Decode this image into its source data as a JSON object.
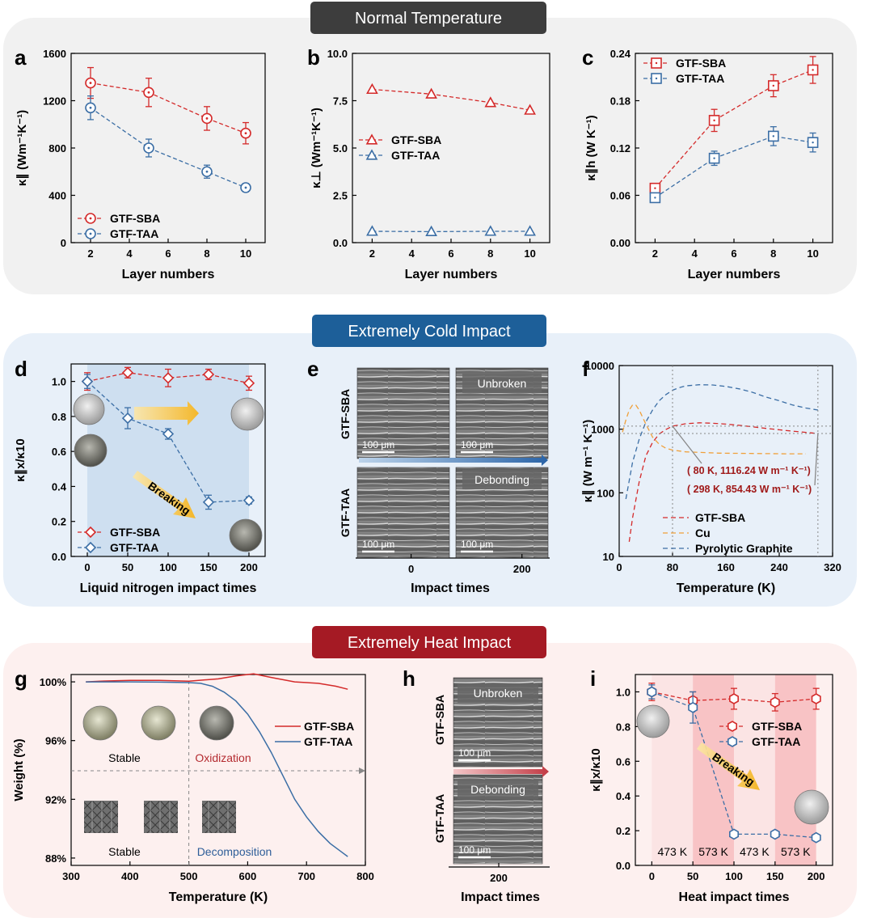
{
  "colors": {
    "sba": "#d42a2a",
    "taa": "#3b6ea5",
    "cu": "#f0a03a",
    "gray": "#4a4a4a",
    "normal_banner": "#3d3d3d",
    "cold_banner": "#1d5f99",
    "heat_banner": "#a51a24",
    "normal_bg": "#f1f1f1",
    "cold_bg": "#e8f0f9",
    "heat_bg": "#fdf0ef",
    "shade_blue": "#c9dcee",
    "shade_red": "#f8c3c5",
    "oxid": "#b42b30",
    "decomp": "#2d5d98"
  },
  "sections": {
    "normal": "Normal Temperature",
    "cold": "Extremely Cold Impact",
    "heat": "Extremely Heat Impact"
  },
  "chart_data": [
    {
      "panel": "a",
      "type": "line",
      "xlabel": "Layer numbers",
      "ylabel": "κ∥ (Wm⁻¹K⁻¹)",
      "x": [
        2,
        5,
        8,
        10
      ],
      "xticks": [
        2,
        4,
        6,
        8,
        10
      ],
      "xlim": [
        1,
        11
      ],
      "ylim": [
        0,
        1600
      ],
      "yticks": [
        0,
        400,
        800,
        1200,
        1600
      ],
      "marker": "circle",
      "legend_position": "bottom-left",
      "series": [
        {
          "name": "GTF-SBA",
          "values": [
            1350,
            1270,
            1050,
            925
          ],
          "errors": [
            130,
            120,
            100,
            90
          ]
        },
        {
          "name": "GTF-TAA",
          "values": [
            1140,
            800,
            600,
            465
          ],
          "errors": [
            100,
            75,
            55,
            35
          ]
        }
      ]
    },
    {
      "panel": "b",
      "type": "line",
      "xlabel": "Layer numbers",
      "ylabel": "κ⊥ (Wm⁻¹K⁻¹)",
      "x": [
        2,
        5,
        8,
        10
      ],
      "xticks": [
        2,
        4,
        6,
        8,
        10
      ],
      "xlim": [
        1,
        11
      ],
      "ylim": [
        0,
        10
      ],
      "yticks": [
        "0.0",
        "2.5",
        "5.0",
        "7.5",
        "10.0"
      ],
      "marker": "triangle",
      "legend_position": "center-left",
      "series": [
        {
          "name": "GTF-SBA",
          "values": [
            8.1,
            7.85,
            7.4,
            7.0
          ]
        },
        {
          "name": "GTF-TAA",
          "values": [
            0.6,
            0.58,
            0.6,
            0.6
          ]
        }
      ]
    },
    {
      "panel": "c",
      "type": "line",
      "xlabel": "Layer numbers",
      "ylabel": "κ∥h (W K⁻¹)",
      "x": [
        2,
        5,
        8,
        10
      ],
      "xticks": [
        2,
        4,
        6,
        8,
        10
      ],
      "xlim": [
        1,
        11
      ],
      "ylim": [
        0,
        0.24
      ],
      "yticks": [
        "0.00",
        "0.06",
        "0.12",
        "0.18",
        "0.24"
      ],
      "marker": "square",
      "legend_position": "top-left",
      "series": [
        {
          "name": "GTF-SBA",
          "values": [
            0.069,
            0.155,
            0.199,
            0.219
          ],
          "errors": [
            0.005,
            0.014,
            0.014,
            0.017
          ]
        },
        {
          "name": "GTF-TAA",
          "values": [
            0.057,
            0.107,
            0.135,
            0.127
          ],
          "errors": [
            0.003,
            0.009,
            0.012,
            0.012
          ]
        }
      ]
    },
    {
      "panel": "d",
      "type": "line",
      "xlabel": "Liquid nitrogen impact times",
      "ylabel": "κ∥x/κ10",
      "x": [
        0,
        50,
        100,
        150,
        200
      ],
      "xticks": [
        0,
        50,
        100,
        150,
        200
      ],
      "xlim": [
        -20,
        220
      ],
      "ylim": [
        0,
        1.1
      ],
      "yticks": [
        "0.0",
        "0.2",
        "0.4",
        "0.6",
        "0.8",
        "1.0"
      ],
      "marker": "diamond",
      "legend_position": "bottom-left",
      "annotation": "Breaking",
      "series": [
        {
          "name": "GTF-SBA",
          "values": [
            1.0,
            1.05,
            1.02,
            1.04,
            0.99
          ],
          "errors": [
            0.05,
            0.03,
            0.05,
            0.03,
            0.04
          ]
        },
        {
          "name": "GTF-TAA",
          "values": [
            1.0,
            0.79,
            0.7,
            0.31,
            0.32
          ],
          "errors": [
            0.04,
            0.06,
            0.03,
            0.04,
            0.02
          ]
        }
      ]
    },
    {
      "panel": "e",
      "type": "image-grid",
      "xlabel": "Impact times",
      "xticks": [
        0,
        200
      ],
      "rows": [
        "GTF-SBA",
        "GTF-TAA"
      ],
      "tags": [
        "Unbroken",
        "Debonding"
      ],
      "scale_label": "100 μm"
    },
    {
      "panel": "f",
      "type": "line",
      "xlabel": "Temperature (K)",
      "ylabel": "κ∥ (W m⁻¹ K⁻¹)",
      "xlim": [
        0,
        320
      ],
      "xticks": [
        0,
        80,
        160,
        240,
        320
      ],
      "yscale": "log",
      "ylim": [
        10,
        10000
      ],
      "yticks": [
        "10",
        "100",
        "1000",
        "10000"
      ],
      "legend_position": "bottom-right",
      "annotations": [
        "( 80 K, 1116.24 W m⁻¹ K⁻¹)",
        "( 298 K, 854.43 W m⁻¹ K⁻¹)"
      ],
      "series": [
        {
          "name": "GTF-SBA",
          "x": [
            15,
            20,
            30,
            40,
            50,
            60,
            70,
            80,
            100,
            120,
            140,
            160,
            180,
            200,
            220,
            240,
            260,
            280,
            298
          ],
          "values": [
            17,
            40,
            150,
            380,
            620,
            840,
            990,
            1116,
            1220,
            1260,
            1240,
            1200,
            1150,
            1090,
            1030,
            980,
            930,
            890,
            854
          ]
        },
        {
          "name": "Cu",
          "x": [
            5,
            10,
            15,
            20,
            25,
            30,
            40,
            50,
            60,
            70,
            80,
            100,
            150,
            200,
            250,
            280
          ],
          "values": [
            900,
            1400,
            2000,
            2400,
            2400,
            2000,
            1200,
            750,
            580,
            500,
            470,
            440,
            420,
            415,
            410,
            410
          ]
        },
        {
          "name": "Pyrolytic Graphite",
          "x": [
            10,
            20,
            30,
            40,
            50,
            60,
            70,
            80,
            90,
            100,
            120,
            140,
            160,
            180,
            200,
            220,
            240,
            260,
            280,
            298
          ],
          "values": [
            80,
            300,
            700,
            1300,
            2000,
            2800,
            3500,
            4100,
            4500,
            4800,
            5000,
            4950,
            4700,
            4300,
            3800,
            3200,
            2800,
            2400,
            2150,
            2000
          ]
        }
      ]
    },
    {
      "panel": "g",
      "type": "line",
      "xlabel": "Temperature (K)",
      "ylabel": "Weight (%)",
      "xlim": [
        300,
        800
      ],
      "xticks": [
        300,
        400,
        500,
        600,
        700,
        800
      ],
      "ylim": [
        87.5,
        100.5
      ],
      "yticks": [
        "88%",
        "92%",
        "96%",
        "100%"
      ],
      "legend_position": "top-right",
      "labels": [
        "Stable",
        "Oxidization",
        "Stable",
        "Decomposition"
      ],
      "series": [
        {
          "name": "GTF-SBA",
          "x": [
            325,
            350,
            400,
            450,
            500,
            550,
            580,
            610,
            640,
            680,
            720,
            750,
            770
          ],
          "values": [
            100.0,
            100.05,
            100.1,
            100.1,
            100.05,
            100.2,
            100.4,
            100.55,
            100.3,
            100.0,
            99.9,
            99.7,
            99.5
          ]
        },
        {
          "name": "GTF-TAA",
          "x": [
            325,
            350,
            400,
            450,
            500,
            520,
            540,
            560,
            580,
            600,
            620,
            640,
            660,
            680,
            700,
            720,
            740,
            760,
            770
          ],
          "values": [
            100.0,
            100.0,
            100.0,
            99.98,
            99.95,
            99.9,
            99.7,
            99.3,
            98.7,
            97.8,
            96.6,
            95.2,
            93.6,
            92.0,
            90.8,
            89.8,
            89.0,
            88.4,
            88.1
          ]
        }
      ]
    },
    {
      "panel": "h",
      "type": "image-grid",
      "xlabel": "Impact times",
      "xticks": [
        200
      ],
      "rows": [
        "GTF-SBA",
        "GTF-TAA"
      ],
      "tags": [
        "Unbroken",
        "Debonding"
      ],
      "scale_label": "100 μm"
    },
    {
      "panel": "i",
      "type": "line",
      "xlabel": "Heat impact times",
      "ylabel": "κ∥x/κ10",
      "x": [
        0,
        50,
        100,
        150,
        200
      ],
      "xticks": [
        0,
        50,
        100,
        150,
        200
      ],
      "xlim": [
        -20,
        220
      ],
      "ylim": [
        0,
        1.1
      ],
      "yticks": [
        "0.0",
        "0.2",
        "0.4",
        "0.6",
        "0.8",
        "1.0"
      ],
      "marker": "hexagon",
      "legend_position": "top-right",
      "annotation": "Breaking",
      "temperature_labels": [
        "473 K",
        "573 K",
        "473 K",
        "573 K"
      ],
      "series": [
        {
          "name": "GTF-SBA",
          "values": [
            1.0,
            0.95,
            0.96,
            0.94,
            0.96
          ],
          "errors": [
            0.05,
            0.05,
            0.06,
            0.05,
            0.06
          ]
        },
        {
          "name": "GTF-TAA",
          "values": [
            1.0,
            0.91,
            0.18,
            0.18,
            0.16
          ],
          "errors": [
            0.04,
            0.09,
            0.01,
            0.01,
            0.01
          ]
        }
      ]
    }
  ]
}
